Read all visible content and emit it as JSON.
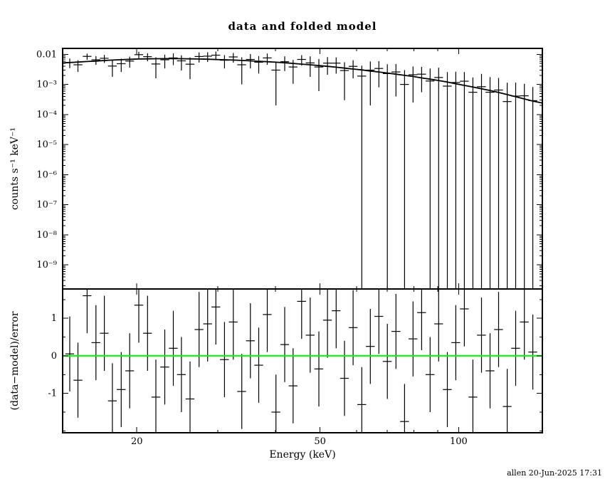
{
  "footer": "allen 20-Jun-2025 17:31",
  "colors": {
    "data": "#000000",
    "model": "#000000",
    "zero_line": "#00ff00",
    "frame": "#000000",
    "background": "#ffffff"
  },
  "chart_data": {
    "type": "scatter",
    "title": "data and folded model",
    "xlabel": "Energy (keV)",
    "xscale": "log",
    "xlim": [
      13.8,
      152
    ],
    "xticks": {
      "major": [
        20,
        50,
        100
      ],
      "labels": [
        "20",
        "50",
        "100"
      ],
      "minor": [
        30,
        40,
        60,
        70,
        80,
        90
      ]
    },
    "panels": [
      {
        "name": "spectrum",
        "ylabel": "counts s⁻¹ keV⁻¹",
        "yscale": "log",
        "ylim": [
          1.58e-10,
          0.0158
        ],
        "yticks": {
          "values": [
            0.01,
            0.001,
            0.0001,
            1e-05,
            1e-06,
            1e-07,
            1e-08,
            1e-09
          ],
          "labels": [
            "0.01",
            "10⁻³",
            "10⁻⁴",
            "10⁻⁵",
            "10⁻⁶",
            "10⁻⁷",
            "10⁻⁸",
            "10⁻⁹"
          ]
        },
        "series": [
          {
            "name": "data",
            "style": "errorbar",
            "x": [
              14.3,
              14.9,
              15.6,
              16.3,
              17.0,
              17.7,
              18.5,
              19.3,
              20.2,
              21.1,
              22.0,
              23.0,
              24.0,
              25.0,
              26.1,
              27.3,
              28.5,
              29.7,
              31.0,
              32.4,
              33.8,
              35.3,
              36.8,
              38.4,
              40.1,
              41.9,
              43.7,
              45.6,
              47.6,
              49.7,
              51.9,
              54.2,
              56.5,
              59.0,
              61.6,
              64.3,
              67.1,
              70.0,
              73.1,
              76.3,
              79.6,
              83.1,
              86.7,
              90.5,
              94.5,
              98.6,
              102.9,
              107.4,
              112.1,
              117.0,
              122.1,
              127.5,
              133.0,
              138.9,
              144.9
            ],
            "xerr": [
              0.31,
              0.33,
              0.34,
              0.36,
              0.37,
              0.39,
              0.41,
              0.42,
              0.44,
              0.46,
              0.48,
              0.51,
              0.53,
              0.55,
              0.57,
              0.6,
              0.63,
              0.65,
              0.68,
              0.71,
              0.74,
              0.78,
              0.81,
              0.84,
              0.88,
              0.92,
              0.96,
              1.0,
              1.05,
              1.09,
              1.14,
              1.19,
              1.24,
              1.3,
              1.36,
              1.41,
              1.48,
              1.54,
              1.61,
              1.68,
              1.75,
              1.83,
              1.91,
              1.99,
              2.08,
              2.17,
              2.26,
              2.36,
              2.47,
              2.57,
              2.69,
              2.81,
              2.93,
              3.06,
              3.19
            ],
            "y": [
              0.0054,
              0.0045,
              0.0086,
              0.0066,
              0.0074,
              0.0041,
              0.0049,
              0.006,
              0.0098,
              0.0084,
              0.0048,
              0.0066,
              0.0076,
              0.0061,
              0.0047,
              0.0085,
              0.0087,
              0.0094,
              0.0064,
              0.0082,
              0.0045,
              0.0068,
              0.0055,
              0.0076,
              0.003,
              0.0057,
              0.0038,
              0.0068,
              0.0052,
              0.0038,
              0.0051,
              0.0051,
              0.0029,
              0.004,
              0.0019,
              0.003,
              0.0034,
              0.0023,
              0.0026,
              0.001,
              0.0021,
              0.0022,
              0.0013,
              0.0017,
              0.00088,
              0.00116,
              0.00128,
              0.00055,
              0.00084,
              0.00055,
              0.00065,
              0.00027,
              0.00041,
              0.00042,
              0.00029
            ],
            "yerr": [
              0.0019,
              0.0019,
              0.002,
              0.0021,
              0.0022,
              0.0023,
              0.0023,
              0.0024,
              0.00245,
              0.0025,
              0.0032,
              0.0032,
              0.0032,
              0.0032,
              0.0032,
              0.00315,
              0.0031,
              0.003,
              0.003,
              0.0029,
              0.0035,
              0.0034,
              0.0032,
              0.0031,
              0.0028,
              0.0029,
              0.00275,
              0.0026,
              0.0034,
              0.0032,
              0.003,
              0.0028,
              0.0026,
              0.0024,
              0.0023,
              0.0028,
              0.0026,
              0.0024,
              0.0022,
              0.002,
              0.00185,
              0.00165,
              0.0021,
              0.0019,
              0.0017,
              0.0015,
              0.0013,
              0.00115,
              0.0014,
              0.0012,
              0.001,
              0.00087,
              0.00074,
              0.00063,
              0.00053
            ]
          },
          {
            "name": "folded model",
            "style": "line",
            "x": [
              13.8,
              14.3,
              14.9,
              15.6,
              16.3,
              17.0,
              17.7,
              18.5,
              19.3,
              20.2,
              21.1,
              22.0,
              23.0,
              24.0,
              25.0,
              26.1,
              27.3,
              28.5,
              29.7,
              31.0,
              32.4,
              33.8,
              35.3,
              36.8,
              38.4,
              40.1,
              41.9,
              43.7,
              45.6,
              47.6,
              49.7,
              51.9,
              54.2,
              56.5,
              59.0,
              61.6,
              64.3,
              67.1,
              70.0,
              73.1,
              76.3,
              79.6,
              83.1,
              86.7,
              90.5,
              94.5,
              98.6,
              102.9,
              107.4,
              112.1,
              117.0,
              122.1,
              127.5,
              133.0,
              138.9,
              144.9,
              152.0
            ],
            "y": [
              0.0052,
              0.00535,
              0.00555,
              0.0058,
              0.006,
              0.00625,
              0.00645,
              0.00665,
              0.00685,
              0.007,
              0.0071,
              0.00715,
              0.0072,
              0.0072,
              0.00715,
              0.0071,
              0.007,
              0.0069,
              0.00675,
              0.0066,
              0.00645,
              0.0063,
              0.0061,
              0.0059,
              0.0057,
              0.0055,
              0.00525,
              0.005,
              0.00475,
              0.0045,
              0.00425,
              0.004,
              0.00375,
              0.0035,
              0.00325,
              0.00305,
              0.0028,
              0.0026,
              0.0024,
              0.0022,
              0.002,
              0.00185,
              0.00165,
              0.0015,
              0.00135,
              0.0012,
              0.00105,
              0.00093,
              0.00082,
              0.00072,
              0.00063,
              0.00054,
              0.00046,
              0.00039,
              0.00033,
              0.00028,
              0.00024
            ]
          }
        ]
      },
      {
        "name": "residuals",
        "ylabel": "(data−model)/error",
        "yscale": "linear",
        "ylim": [
          -2.05,
          1.78
        ],
        "yticks": {
          "values": [
            1,
            0,
            -1
          ],
          "labels": [
            "1",
            "0",
            "-1"
          ],
          "minor": [
            1.5,
            0.5,
            -0.5,
            -1.5,
            -2
          ]
        },
        "series": [
          {
            "name": "residuals",
            "style": "errorbar",
            "x": [
              14.3,
              14.9,
              15.6,
              16.3,
              17.0,
              17.7,
              18.5,
              19.3,
              20.2,
              21.1,
              22.0,
              23.0,
              24.0,
              25.0,
              26.1,
              27.3,
              28.5,
              29.7,
              31.0,
              32.4,
              33.8,
              35.3,
              36.8,
              38.4,
              40.1,
              41.9,
              43.7,
              45.6,
              47.6,
              49.7,
              51.9,
              54.2,
              56.5,
              59.0,
              61.6,
              64.3,
              67.1,
              70.0,
              73.1,
              76.3,
              79.6,
              83.1,
              86.7,
              90.5,
              94.5,
              98.6,
              102.9,
              107.4,
              112.1,
              117.0,
              122.1,
              127.5,
              133.0,
              138.9,
              144.9
            ],
            "xerr": [
              0.31,
              0.33,
              0.34,
              0.36,
              0.37,
              0.39,
              0.41,
              0.42,
              0.44,
              0.46,
              0.48,
              0.51,
              0.53,
              0.55,
              0.57,
              0.6,
              0.63,
              0.65,
              0.68,
              0.71,
              0.74,
              0.78,
              0.81,
              0.84,
              0.88,
              0.92,
              0.96,
              1.0,
              1.05,
              1.09,
              1.14,
              1.19,
              1.24,
              1.3,
              1.36,
              1.41,
              1.48,
              1.54,
              1.61,
              1.68,
              1.75,
              1.83,
              1.91,
              1.99,
              2.08,
              2.17,
              2.26,
              2.36,
              2.47,
              2.57,
              2.69,
              2.81,
              2.93,
              3.06,
              3.19
            ],
            "y": [
              0.05,
              -0.65,
              1.6,
              0.35,
              0.6,
              -1.2,
              -0.9,
              -0.4,
              1.35,
              0.6,
              -1.1,
              -0.3,
              0.2,
              -0.5,
              -1.15,
              0.7,
              0.85,
              1.3,
              -0.1,
              0.9,
              -0.95,
              0.4,
              -0.25,
              1.1,
              -1.5,
              0.3,
              -0.8,
              1.45,
              0.55,
              -0.35,
              0.95,
              1.2,
              -0.6,
              0.75,
              -1.3,
              0.25,
              1.05,
              -0.15,
              0.65,
              -1.75,
              0.45,
              1.15,
              -0.5,
              0.85,
              -0.9,
              0.35,
              1.25,
              -1.1,
              0.55,
              -0.4,
              0.7,
              -1.35,
              0.2,
              0.9,
              0.1
            ],
            "yerr": 1.0
          },
          {
            "name": "zero line",
            "style": "hline",
            "y": 0
          }
        ]
      }
    ]
  }
}
